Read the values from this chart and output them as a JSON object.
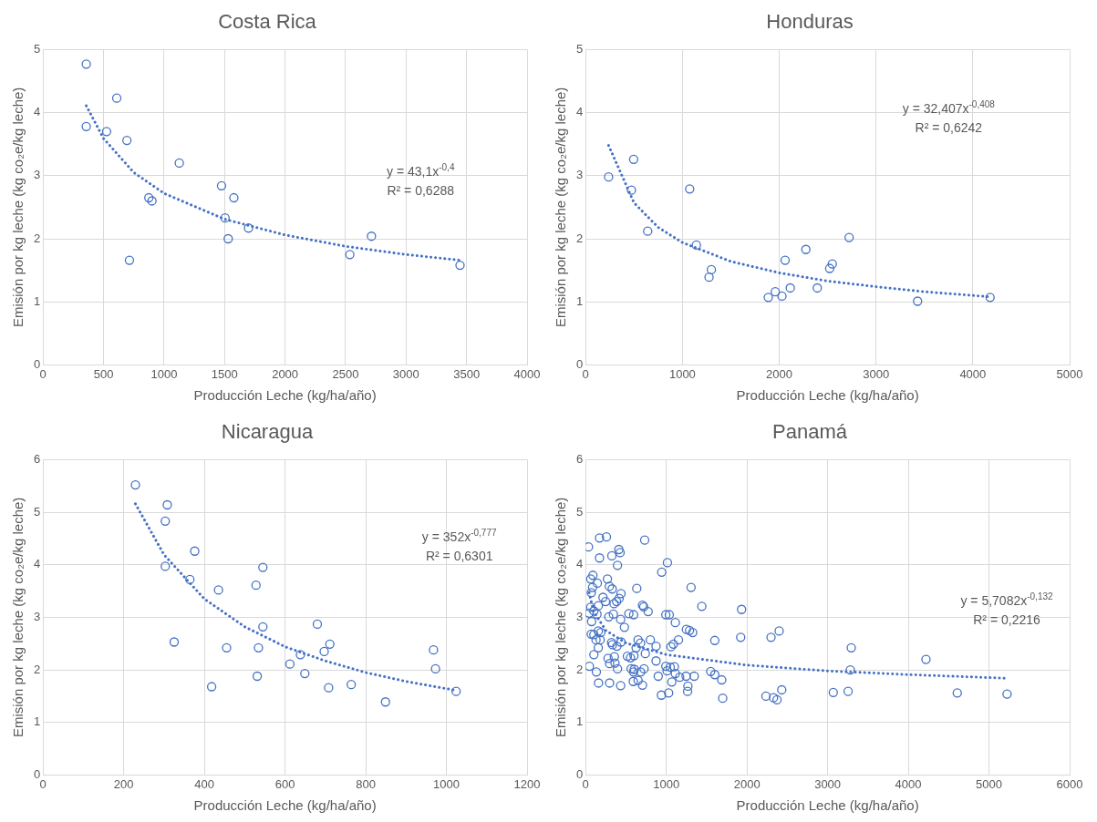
{
  "chart_data": [
    {
      "type": "scatter",
      "title": "Costa Rica",
      "xlabel": "Producción Leche (kg/ha/año)",
      "ylabel": "Emisión por kg leche (kg co₂e/kg leche)",
      "xlim": [
        0,
        4000
      ],
      "xticks": [
        0,
        500,
        1000,
        1500,
        2000,
        2500,
        3000,
        3500,
        4000
      ],
      "ylim": [
        0,
        5
      ],
      "yticks": [
        0,
        1,
        2,
        3,
        4,
        5
      ],
      "grid": true,
      "legend": false,
      "marker": "circle",
      "annotations": [
        "y = 43,1x$^{-0,4}$",
        "R² = 0,6288"
      ],
      "series": [
        {
          "type": "scatter",
          "color": "#4472c4",
          "x": [
            357,
            357,
            525,
            609,
            693,
            714,
            874,
            900,
            1126,
            1475,
            1577,
            1504,
            1530,
            1698,
            2535,
            2714,
            3446
          ],
          "values": [
            4.77,
            3.78,
            3.7,
            4.23,
            3.56,
            1.66,
            2.65,
            2.6,
            3.2,
            2.84,
            2.65,
            2.33,
            2.0,
            2.17,
            1.75,
            2.04,
            1.58
          ]
        },
        {
          "type": "line",
          "color": "#4472c4",
          "line_style": "dotted",
          "marker": "none",
          "x": [
            357,
            500,
            750,
            1000,
            1500,
            2000,
            2500,
            3000,
            3446
          ],
          "values": [
            4.11,
            3.59,
            3.05,
            2.72,
            2.31,
            2.06,
            1.88,
            1.75,
            1.66
          ]
        }
      ]
    },
    {
      "type": "scatter",
      "title": "Honduras",
      "xlabel": "Producción Leche (kg/ha/año)",
      "ylabel": "Emisión por kg leche (kg co₂e/kg leche)",
      "xlim": [
        0,
        5000
      ],
      "xticks": [
        0,
        1000,
        2000,
        3000,
        4000,
        5000
      ],
      "ylim": [
        0,
        5
      ],
      "yticks": [
        0,
        1,
        2,
        3,
        4,
        5
      ],
      "grid": true,
      "legend": false,
      "marker": "circle",
      "annotations": [
        "y = 32,407x$^{-0,408}$",
        "R² = 0,6242"
      ],
      "series": [
        {
          "type": "scatter",
          "color": "#4472c4",
          "x": [
            237,
            496,
            473,
            1075,
            641,
            1144,
            1299,
            1275,
            1887,
            1959,
            2028,
            2114,
            2061,
            2275,
            2393,
            2521,
            2548,
            2722,
            3429,
            4178
          ],
          "values": [
            2.98,
            3.26,
            2.77,
            2.79,
            2.12,
            1.9,
            1.51,
            1.39,
            1.07,
            1.16,
            1.09,
            1.22,
            1.66,
            1.83,
            1.22,
            1.53,
            1.6,
            2.02,
            1.01,
            1.07
          ]
        },
        {
          "type": "line",
          "color": "#4472c4",
          "line_style": "dotted",
          "marker": "none",
          "x": [
            237,
            500,
            750,
            1000,
            1500,
            2000,
            2500,
            3000,
            3500,
            4178
          ],
          "values": [
            3.48,
            2.57,
            2.18,
            1.94,
            1.64,
            1.46,
            1.33,
            1.24,
            1.16,
            1.08
          ]
        }
      ]
    },
    {
      "type": "scatter",
      "title": "Nicaragua",
      "xlabel": "Producción Leche (kg/ha/año)",
      "ylabel": "Emisión por kg leche (kg co₂e/kg leche)",
      "xlim": [
        0,
        1200
      ],
      "xticks": [
        0,
        200,
        400,
        600,
        800,
        1000,
        1200
      ],
      "ylim": [
        0,
        6
      ],
      "yticks": [
        0,
        1,
        2,
        3,
        4,
        5,
        6
      ],
      "grid": true,
      "legend": false,
      "marker": "circle",
      "annotations": [
        "y = 352x$^{-0,777}$",
        "R² = 0,6301"
      ],
      "series": [
        {
          "type": "scatter",
          "color": "#4472c4",
          "x": [
            229,
            308,
            303,
            376,
            303,
            364,
            435,
            325,
            418,
            455,
            545,
            528,
            545,
            534,
            531,
            612,
            638,
            649,
            680,
            697,
            711,
            708,
            764,
            849,
            968,
            973,
            1024
          ],
          "values": [
            5.52,
            5.14,
            4.83,
            4.26,
            3.97,
            3.72,
            3.52,
            2.53,
            1.68,
            2.42,
            3.95,
            3.61,
            2.82,
            2.42,
            1.88,
            2.11,
            2.29,
            1.93,
            2.87,
            2.35,
            2.49,
            1.66,
            1.72,
            1.39,
            2.38,
            2.02,
            1.59
          ]
        },
        {
          "type": "line",
          "color": "#4472c4",
          "line_style": "dotted",
          "marker": "none",
          "x": [
            229,
            300,
            400,
            500,
            600,
            700,
            800,
            900,
            1024
          ],
          "values": [
            5.16,
            4.19,
            3.35,
            2.82,
            2.44,
            2.17,
            1.95,
            1.78,
            1.61
          ]
        }
      ]
    },
    {
      "type": "scatter",
      "title": "Panamá",
      "xlabel": "Producción Leche (kg/ha/año)",
      "ylabel": "Emisión por kg leche (kg co₂e/kg leche)",
      "xlim": [
        0,
        6000
      ],
      "xticks": [
        0,
        1000,
        2000,
        3000,
        4000,
        5000,
        6000
      ],
      "ylim": [
        0,
        6
      ],
      "yticks": [
        0,
        1,
        2,
        3,
        4,
        5,
        6
      ],
      "grid": true,
      "legend": false,
      "marker": "circle",
      "annotations": [
        "y = 5,7082x$^{-0,132}$",
        "R² = 0,2216"
      ],
      "series": [
        {
          "type": "scatter",
          "color": "#4472c4",
          "x": [
            35,
            172,
            258,
            732,
            411,
            427,
            325,
            172,
            395,
            1014,
            943,
            90,
            63,
            270,
            145,
            294,
            329,
            86,
            70,
            634,
            1307,
            438,
            215,
            415,
            384,
            352,
            247,
            157,
            63,
            102,
            43,
            141,
            705,
            720,
            775,
            1440,
            1933,
            344,
            286,
            536,
            595,
            994,
            1037,
            434,
            74,
            1112,
            481,
            70,
            157,
            188,
            129,
            180,
            102,
            321,
            333,
            388,
            438,
            650,
            681,
            802,
            873,
            1249,
            1288,
            1327,
            1601,
            1922,
            2298,
            2399,
            1057,
            1088,
            1151,
            157,
            102,
            517,
            556,
            599,
            626,
            740,
            873,
            278,
            356,
            297,
            364,
            47,
            133,
            395,
            564,
            603,
            681,
            724,
            994,
            1049,
            1100,
            1010,
            1112,
            1166,
            1245,
            1346,
            900,
            595,
            1550,
            1601,
            1687,
            160,
            297,
            434,
            591,
            650,
            705,
            1068,
            1268,
            1264,
            939,
            1029,
            1699,
            2235,
            2329,
            2372,
            2431,
            3070,
            3254,
            3293,
            3281,
            4219,
            4607,
            5224
          ],
          "values": [
            4.34,
            4.51,
            4.53,
            4.47,
            4.29,
            4.23,
            4.17,
            4.13,
            3.99,
            4.04,
            3.86,
            3.8,
            3.73,
            3.73,
            3.65,
            3.59,
            3.54,
            3.57,
            3.47,
            3.55,
            3.57,
            3.45,
            3.38,
            3.36,
            3.3,
            3.26,
            3.3,
            3.22,
            3.19,
            3.12,
            3.08,
            3.06,
            3.23,
            3.2,
            3.11,
            3.21,
            3.15,
            3.06,
            3.01,
            3.07,
            3.05,
            3.05,
            3.05,
            2.96,
            2.92,
            2.9,
            2.81,
            2.68,
            2.74,
            2.71,
            2.57,
            2.57,
            2.67,
            2.52,
            2.48,
            2.45,
            2.53,
            2.57,
            2.51,
            2.57,
            2.45,
            2.77,
            2.75,
            2.71,
            2.56,
            2.62,
            2.62,
            2.74,
            2.44,
            2.49,
            2.57,
            2.42,
            2.29,
            2.26,
            2.23,
            2.27,
            2.42,
            2.31,
            2.17,
            2.22,
            2.25,
            2.12,
            2.13,
            2.07,
            1.96,
            2.02,
            2.02,
            2.01,
            1.96,
            2.02,
            2.07,
            2.05,
            2.06,
            1.98,
            1.93,
            1.86,
            1.88,
            1.88,
            1.88,
            1.96,
            1.97,
            1.91,
            1.81,
            1.75,
            1.75,
            1.7,
            1.78,
            1.8,
            1.71,
            1.77,
            1.69,
            1.59,
            1.52,
            1.56,
            1.46,
            1.5,
            1.47,
            1.43,
            1.62,
            1.57,
            1.59,
            2.42,
            2.0,
            2.2,
            1.56,
            1.54
          ]
        },
        {
          "type": "line",
          "color": "#4472c4",
          "line_style": "dotted",
          "marker": "none",
          "x": [
            43,
            100,
            250,
            500,
            1000,
            2000,
            3000,
            4000,
            5224
          ],
          "values": [
            3.47,
            3.11,
            2.75,
            2.51,
            2.29,
            2.09,
            1.98,
            1.91,
            1.84
          ]
        }
      ]
    }
  ]
}
